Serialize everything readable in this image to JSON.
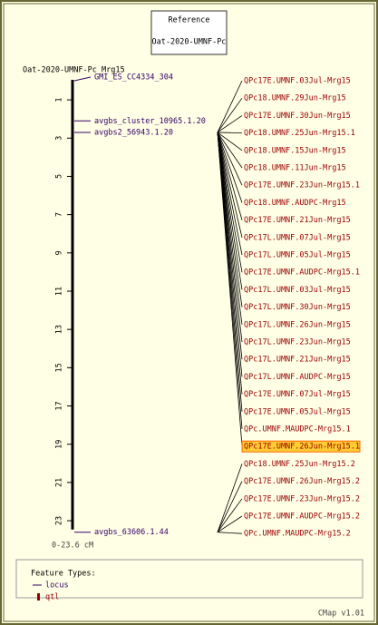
{
  "reference": {
    "title": "Reference",
    "map_set": "Oat-2020-UMNF-Pc"
  },
  "map": {
    "name": "Oat-2020-UMNF-Pc_Mrg15",
    "range_label": "0-23.6 cM",
    "ylim": [
      0,
      23.6
    ],
    "ticks": [
      1,
      3,
      5,
      7,
      9,
      11,
      13,
      15,
      17,
      19,
      21,
      23
    ],
    "loci": [
      {
        "label": "GMI_ES_CC4334_304",
        "position": 0
      },
      {
        "label": "avgbs_cluster_10965.1.20",
        "position": 2.1
      },
      {
        "label": "avgbs2_56943.1.20",
        "position": 2.7
      },
      {
        "label": "avgbs_63606.1.44",
        "position": 23.6
      }
    ],
    "qtls": [
      {
        "label": "QPc17E.UMNF.03Jul-Mrg15",
        "position": 2.7
      },
      {
        "label": "QPc18.UMNF.29Jun-Mrg15",
        "position": 2.7
      },
      {
        "label": "QPc17E.UMNF.30Jun-Mrg15",
        "position": 2.7
      },
      {
        "label": "QPc18.UMNF.25Jun-Mrg15.1",
        "position": 2.7
      },
      {
        "label": "QPc18.UMNF.15Jun-Mrg15",
        "position": 2.7
      },
      {
        "label": "QPc18.UMNF.11Jun-Mrg15",
        "position": 2.7
      },
      {
        "label": "QPc17E.UMNF.23Jun-Mrg15.1",
        "position": 2.7
      },
      {
        "label": "QPc18.UMNF.AUDPC-Mrg15",
        "position": 2.7
      },
      {
        "label": "QPc17E.UMNF.21Jun-Mrg15",
        "position": 2.7
      },
      {
        "label": "QPc17L.UMNF.07Jul-Mrg15",
        "position": 2.7
      },
      {
        "label": "QPc17L.UMNF.05Jul-Mrg15",
        "position": 2.7
      },
      {
        "label": "QPc17E.UMNF.AUDPC-Mrg15.1",
        "position": 2.7
      },
      {
        "label": "QPc17L.UMNF.03Jul-Mrg15",
        "position": 2.7
      },
      {
        "label": "QPc17L.UMNF.30Jun-Mrg15",
        "position": 2.7
      },
      {
        "label": "QPc17L.UMNF.26Jun-Mrg15",
        "position": 2.7
      },
      {
        "label": "QPc17L.UMNF.23Jun-Mrg15",
        "position": 2.7
      },
      {
        "label": "QPc17L.UMNF.21Jun-Mrg15",
        "position": 2.7
      },
      {
        "label": "QPc17L.UMNF.AUDPC-Mrg15",
        "position": 2.7
      },
      {
        "label": "QPc17E.UMNF.07Jul-Mrg15",
        "position": 2.7
      },
      {
        "label": "QPc17E.UMNF.05Jul-Mrg15",
        "position": 2.7
      },
      {
        "label": "QPc.UMNF.MAUDPC-Mrg15.1",
        "position": 2.7
      },
      {
        "label": "QPc17E.UMNF.26Jun-Mrg15.1",
        "position": 2.7,
        "highlight": true
      },
      {
        "label": "QPc18.UMNF.25Jun-Mrg15.2",
        "position": 23.6
      },
      {
        "label": "QPc17E.UMNF.26Jun-Mrg15.2",
        "position": 23.6
      },
      {
        "label": "QPc17E.UMNF.23Jun-Mrg15.2",
        "position": 23.6
      },
      {
        "label": "QPc17E.UMNF.AUDPC-Mrg15.2",
        "position": 23.6
      },
      {
        "label": "QPc.UMNF.MAUDPC-Mrg15.2",
        "position": 23.6
      }
    ]
  },
  "legend": {
    "title": "Feature Types:",
    "items": [
      "locus",
      "qtl"
    ]
  },
  "footer": "CMap v1.01"
}
